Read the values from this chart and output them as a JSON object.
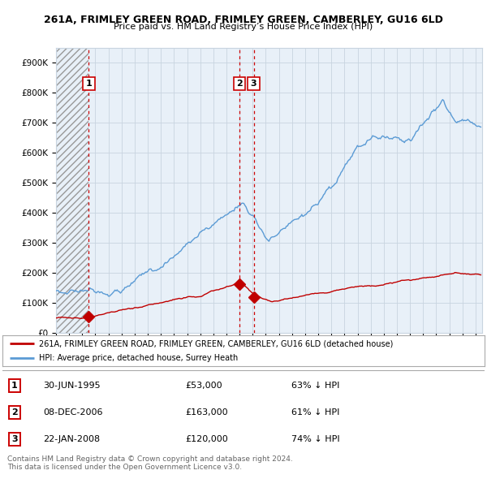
{
  "title": "261A, FRIMLEY GREEN ROAD, FRIMLEY GREEN, CAMBERLEY, GU16 6LD",
  "subtitle": "Price paid vs. HM Land Registry’s House Price Index (HPI)",
  "ylim": [
    0,
    950000
  ],
  "yticks": [
    0,
    100000,
    200000,
    300000,
    400000,
    500000,
    600000,
    700000,
    800000,
    900000
  ],
  "hpi_color": "#5b9bd5",
  "price_color": "#c00000",
  "background_color": "#ffffff",
  "plot_bg_color": "#e8f0f8",
  "hatch_color": "#ffffff",
  "grid_color": "#c8d4e0",
  "vline_color": "#cc0000",
  "xlim_start": 1993,
  "xlim_end": 2025.5,
  "hatch_end": 1995.5,
  "sales": [
    {
      "year": 1995.5,
      "price": 53000,
      "label": "1"
    },
    {
      "year": 2007.0,
      "price": 163000,
      "label": "2"
    },
    {
      "year": 2008.08,
      "price": 120000,
      "label": "3"
    }
  ],
  "legend_label_price": "261A, FRIMLEY GREEN ROAD, FRIMLEY GREEN, CAMBERLEY, GU16 6LD (detached house)",
  "legend_label_hpi": "HPI: Average price, detached house, Surrey Heath",
  "table_rows": [
    {
      "num": "1",
      "date": "30-JUN-1995",
      "price": "£53,000",
      "note": "63% ↓ HPI"
    },
    {
      "num": "2",
      "date": "08-DEC-2006",
      "price": "£163,000",
      "note": "61% ↓ HPI"
    },
    {
      "num": "3",
      "date": "22-JAN-2008",
      "price": "£120,000",
      "note": "74% ↓ HPI"
    }
  ],
  "footnote": "Contains HM Land Registry data © Crown copyright and database right 2024.\nThis data is licensed under the Open Government Licence v3.0."
}
